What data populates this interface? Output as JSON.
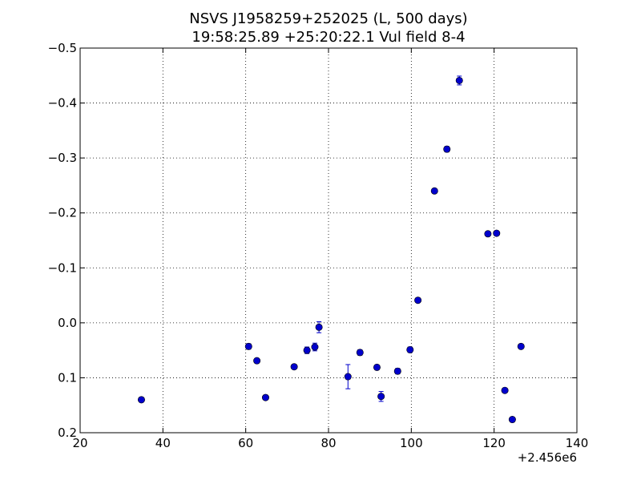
{
  "chart_data": {
    "type": "scatter",
    "title": "NSVS J1958259+252025 (L, 500 days)",
    "subtitle": "19:58:25.89 +25:20:22.1 Vul field 8-4",
    "xlabel": "",
    "ylabel": "",
    "xlim": [
      20,
      140
    ],
    "ylim": [
      0.2,
      -0.5
    ],
    "y_inverted": true,
    "x_offset_label": "+2.456e6",
    "grid": true,
    "grid_style": "dotted",
    "marker_color": "#0000cc",
    "x_ticks": [
      20,
      40,
      60,
      80,
      100,
      120,
      140
    ],
    "x_tick_labels": [
      "20",
      "40",
      "60",
      "80",
      "100",
      "120",
      "140"
    ],
    "y_ticks": [
      -0.5,
      -0.4,
      -0.3,
      -0.2,
      -0.1,
      0.0,
      0.1,
      0.2
    ],
    "y_tick_labels": [
      "−0.5",
      "−0.4",
      "−0.3",
      "−0.2",
      "−0.1",
      "0.0",
      "0.1",
      "0.2"
    ],
    "points": [
      {
        "x": 34.8,
        "y": 0.14,
        "err": 0.004
      },
      {
        "x": 60.7,
        "y": 0.043,
        "err": 0.005
      },
      {
        "x": 62.7,
        "y": 0.069,
        "err": 0.004
      },
      {
        "x": 64.8,
        "y": 0.136,
        "err": 0.004
      },
      {
        "x": 71.7,
        "y": 0.08,
        "err": 0.004
      },
      {
        "x": 74.8,
        "y": 0.05,
        "err": 0.006
      },
      {
        "x": 76.7,
        "y": 0.044,
        "err": 0.007
      },
      {
        "x": 77.7,
        "y": 0.008,
        "err": 0.01
      },
      {
        "x": 84.7,
        "y": 0.098,
        "err": 0.022
      },
      {
        "x": 87.6,
        "y": 0.054,
        "err": 0.005
      },
      {
        "x": 91.7,
        "y": 0.081,
        "err": 0.004
      },
      {
        "x": 92.7,
        "y": 0.134,
        "err": 0.009
      },
      {
        "x": 96.7,
        "y": 0.088,
        "err": 0.005
      },
      {
        "x": 99.7,
        "y": 0.049,
        "err": 0.005
      },
      {
        "x": 101.6,
        "y": -0.041,
        "err": 0.004
      },
      {
        "x": 105.6,
        "y": -0.24,
        "err": 0.004
      },
      {
        "x": 108.6,
        "y": -0.316,
        "err": 0.005
      },
      {
        "x": 111.6,
        "y": -0.441,
        "err": 0.008
      },
      {
        "x": 118.5,
        "y": -0.162,
        "err": 0.004
      },
      {
        "x": 120.6,
        "y": -0.163,
        "err": 0.004
      },
      {
        "x": 122.6,
        "y": 0.123,
        "err": 0.004
      },
      {
        "x": 124.4,
        "y": 0.176,
        "err": 0.004
      },
      {
        "x": 126.5,
        "y": 0.043,
        "err": 0.004
      }
    ]
  }
}
